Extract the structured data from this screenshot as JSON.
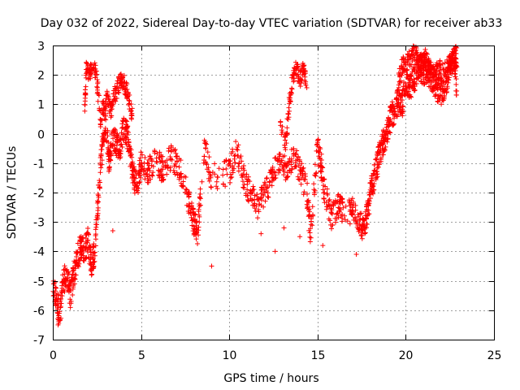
{
  "chart_data": {
    "type": "scatter",
    "title": "Day 032 of 2022, Sidereal Day-to-day VTEC variation (SDTVAR) for receiver ab33",
    "xlabel": "GPS time / hours",
    "ylabel": "SDTVAR / TECUs",
    "xlim": [
      0,
      25
    ],
    "ylim": [
      -7,
      3
    ],
    "xticks": [
      0,
      5,
      10,
      15,
      20,
      25
    ],
    "yticks": [
      -7,
      -6,
      -5,
      -4,
      -3,
      -2,
      -1,
      0,
      1,
      2,
      3
    ],
    "grid": true,
    "marker": "+",
    "series": [
      {
        "name": "SDTVAR",
        "color": "#ff0000",
        "trend": [
          [
            0.0,
            -5.3
          ],
          [
            0.2,
            -5.6
          ],
          [
            0.4,
            -6.2
          ],
          [
            0.6,
            -5.0
          ],
          [
            0.8,
            -4.8
          ],
          [
            1.0,
            -5.5
          ],
          [
            1.2,
            -4.8
          ],
          [
            1.4,
            -4.2
          ],
          [
            1.6,
            -3.8
          ],
          [
            1.8,
            -4.0
          ],
          [
            2.0,
            -3.6
          ],
          [
            2.2,
            -4.5
          ],
          [
            2.4,
            -3.8
          ],
          [
            2.6,
            -2.0
          ],
          [
            2.8,
            -0.5
          ],
          [
            3.0,
            0.5
          ],
          [
            3.2,
            -1.0
          ],
          [
            3.4,
            0.0
          ],
          [
            3.6,
            -0.3
          ],
          [
            3.8,
            -0.5
          ],
          [
            4.0,
            0.2
          ],
          [
            4.2,
            0.0
          ],
          [
            4.4,
            -0.8
          ],
          [
            4.6,
            -1.5
          ],
          [
            4.8,
            -1.8
          ],
          [
            5.0,
            -1.0
          ],
          [
            5.4,
            -1.3
          ],
          [
            5.8,
            -0.8
          ],
          [
            6.2,
            -1.2
          ],
          [
            6.6,
            -0.8
          ],
          [
            7.0,
            -1.0
          ],
          [
            7.4,
            -1.5
          ],
          [
            7.8,
            -2.5
          ],
          [
            8.0,
            -3.0
          ],
          [
            8.2,
            -3.3
          ],
          [
            8.6,
            -0.5
          ],
          [
            9.0,
            -1.5
          ],
          [
            10.0,
            -1.3
          ],
          [
            10.4,
            -0.5
          ],
          [
            10.8,
            -1.5
          ],
          [
            11.2,
            -2.0
          ],
          [
            11.6,
            -2.5
          ],
          [
            12.0,
            -2.0
          ],
          [
            12.4,
            -1.5
          ],
          [
            12.8,
            -1.0
          ],
          [
            13.2,
            -1.2
          ],
          [
            13.6,
            -0.8
          ],
          [
            14.0,
            -1.2
          ],
          [
            14.4,
            -2.0
          ],
          [
            14.6,
            -3.5
          ],
          [
            15.0,
            -0.5
          ],
          [
            15.2,
            -1.0
          ],
          [
            15.4,
            -2.0
          ],
          [
            15.8,
            -2.8
          ],
          [
            16.2,
            -2.5
          ],
          [
            16.6,
            -2.8
          ],
          [
            17.0,
            -2.5
          ],
          [
            17.4,
            -3.0
          ],
          [
            17.6,
            -3.3
          ],
          [
            17.8,
            -2.8
          ],
          [
            18.0,
            -2.0
          ],
          [
            18.2,
            -1.5
          ],
          [
            18.4,
            -1.0
          ],
          [
            18.6,
            -0.5
          ],
          [
            18.8,
            -0.2
          ],
          [
            19.0,
            0.3
          ],
          [
            19.2,
            0.6
          ],
          [
            19.4,
            0.8
          ],
          [
            19.6,
            1.2
          ],
          [
            19.8,
            1.0
          ],
          [
            20.0,
            1.8
          ],
          [
            20.2,
            1.5
          ],
          [
            20.4,
            1.8
          ],
          [
            20.6,
            2.0
          ],
          [
            20.8,
            2.3
          ],
          [
            21.0,
            2.0
          ],
          [
            21.2,
            2.2
          ],
          [
            21.4,
            1.9
          ],
          [
            21.6,
            1.8
          ],
          [
            21.8,
            1.5
          ],
          [
            22.0,
            1.4
          ],
          [
            22.2,
            1.6
          ],
          [
            22.4,
            2.0
          ],
          [
            22.6,
            2.4
          ],
          [
            22.8,
            2.5
          ],
          [
            22.9,
            2.7
          ]
        ],
        "upper_branch": [
          [
            1.8,
            0.8
          ],
          [
            1.9,
            2.2
          ],
          [
            2.1,
            2.0
          ],
          [
            2.3,
            2.5
          ],
          [
            2.5,
            1.8
          ],
          [
            2.7,
            0.5
          ],
          [
            2.9,
            1.0
          ],
          [
            3.1,
            1.2
          ],
          [
            3.3,
            0.8
          ],
          [
            3.5,
            1.3
          ],
          [
            3.7,
            1.6
          ],
          [
            3.9,
            1.9
          ],
          [
            4.1,
            1.6
          ],
          [
            4.3,
            1.2
          ],
          [
            4.5,
            0.6
          ],
          [
            12.9,
            0.3
          ],
          [
            13.2,
            -0.3
          ],
          [
            13.4,
            1.0
          ],
          [
            13.6,
            2.0
          ],
          [
            13.8,
            2.3
          ],
          [
            14.0,
            1.8
          ],
          [
            14.2,
            2.3
          ],
          [
            14.4,
            1.5
          ],
          [
            19.6,
            1.8
          ],
          [
            19.8,
            2.3
          ],
          [
            20.0,
            2.4
          ],
          [
            20.3,
            2.6
          ],
          [
            20.5,
            2.8
          ],
          [
            20.7,
            2.5
          ],
          [
            20.9,
            2.4
          ],
          [
            21.1,
            2.7
          ],
          [
            21.3,
            2.3
          ],
          [
            21.6,
            2.0
          ],
          [
            21.9,
            2.2
          ],
          [
            22.2,
            2.1
          ],
          [
            22.5,
            2.4
          ],
          [
            22.7,
            2.8
          ],
          [
            22.9,
            1.3
          ]
        ],
        "outliers": [
          [
            9.0,
            -4.5
          ],
          [
            11.8,
            -3.4
          ],
          [
            13.1,
            -3.2
          ],
          [
            14.0,
            -3.5
          ],
          [
            15.3,
            -3.8
          ],
          [
            17.2,
            -4.1
          ],
          [
            3.4,
            -3.3
          ],
          [
            0.3,
            -6.5
          ],
          [
            8.0,
            -3.4
          ],
          [
            12.6,
            -4.0
          ]
        ]
      }
    ]
  }
}
